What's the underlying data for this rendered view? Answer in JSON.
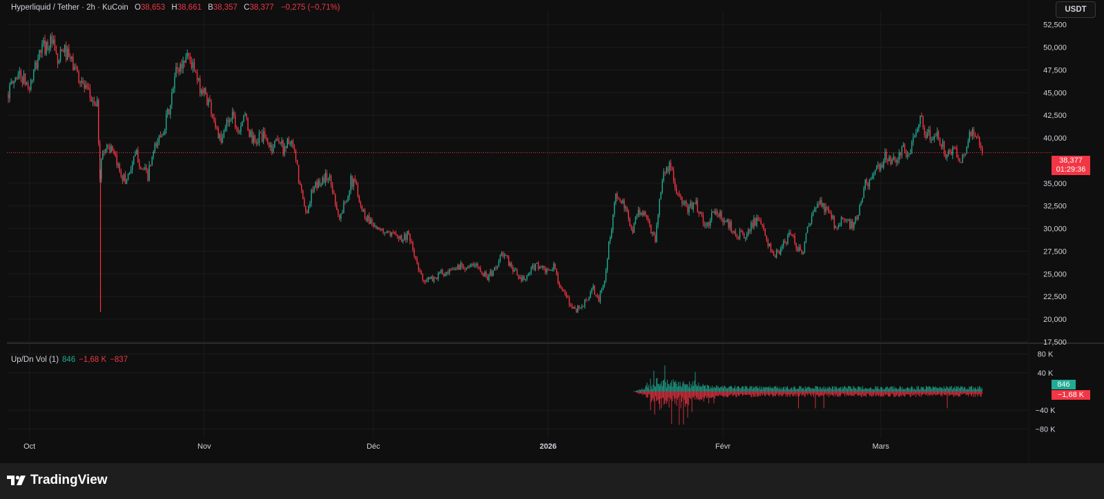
{
  "header": {
    "symbol": "Hyperliquid / Tether · 2h · KuCoin",
    "open_label": "O",
    "open": "38,653",
    "high_label": "H",
    "high": "38,661",
    "low_label": "B",
    "low": "38,357",
    "close_label": "C",
    "close": "38,377",
    "change": "−0,275 (−0,71%)"
  },
  "currency_button": "USDT",
  "last_price": {
    "price": "38,377",
    "countdown": "01:29:36"
  },
  "volume_legend": {
    "title": "Up/Dn Vol (1)",
    "up": "846",
    "down": "−1,68 K",
    "delta": "−837"
  },
  "volume_tags": {
    "up": "846",
    "down": "−1,68 K"
  },
  "brand": "TradingView",
  "colors": {
    "up": "#22ab94",
    "down": "#f23645",
    "background": "#0f0f0f",
    "grid": "#1c1c1c",
    "axis_text": "#d1d4dc"
  },
  "chart_data": [
    {
      "type": "candlestick",
      "timeframe": "2h",
      "y_ticks": [
        "52,500",
        "50,000",
        "47,500",
        "45,000",
        "42,500",
        "40,000",
        "35,000",
        "32,500",
        "30,000",
        "27,500",
        "25,000",
        "22,500",
        "20,000",
        "17,500"
      ],
      "y_tick_values": [
        52.5,
        50,
        47.5,
        45,
        42.5,
        40,
        35,
        32.5,
        30,
        27.5,
        25,
        22.5,
        20,
        17.5
      ],
      "ylim": [
        17.5,
        54
      ],
      "x_ticks": [
        "Oct",
        "Nov",
        "Déc",
        "2026",
        "Févr",
        "Mars"
      ],
      "x_tick_days": [
        0,
        31,
        61,
        92,
        123,
        151
      ],
      "x_range_days": [
        -4,
        177
      ],
      "close_path": [
        [
          -4,
          44.8
        ],
        [
          -2,
          47.2
        ],
        [
          0,
          45.5
        ],
        [
          2,
          49.8
        ],
        [
          4,
          50.6
        ],
        [
          5,
          48.2
        ],
        [
          6,
          49.8
        ],
        [
          8,
          47.8
        ],
        [
          10,
          45.2
        ],
        [
          11,
          44.3
        ],
        [
          12,
          43.5
        ],
        [
          12.5,
          36.0
        ],
        [
          13,
          38.5
        ],
        [
          14,
          39.3
        ],
        [
          15,
          37.8
        ],
        [
          16,
          36.5
        ],
        [
          17,
          35.2
        ],
        [
          18,
          36.8
        ],
        [
          19,
          38.2
        ],
        [
          20,
          36.6
        ],
        [
          21,
          35.8
        ],
        [
          22,
          38.3
        ],
        [
          23,
          40.0
        ],
        [
          24,
          41.5
        ],
        [
          25,
          43.5
        ],
        [
          26,
          47.4
        ],
        [
          27,
          48.0
        ],
        [
          28,
          49.4
        ],
        [
          29,
          47.8
        ],
        [
          30,
          45.8
        ],
        [
          31,
          45.0
        ],
        [
          32,
          43.7
        ],
        [
          33,
          41.5
        ],
        [
          34,
          39.2
        ],
        [
          35,
          41.8
        ],
        [
          36,
          42.8
        ],
        [
          37,
          40.8
        ],
        [
          38,
          42.6
        ],
        [
          39,
          40.6
        ],
        [
          40,
          39.3
        ],
        [
          41,
          40.4
        ],
        [
          42,
          39.7
        ],
        [
          43,
          38.8
        ],
        [
          44,
          40.2
        ],
        [
          45,
          38.8
        ],
        [
          46,
          39.7
        ],
        [
          47,
          38.3
        ],
        [
          48,
          34.6
        ],
        [
          49,
          31.6
        ],
        [
          50,
          33.8
        ],
        [
          51,
          34.8
        ],
        [
          52,
          35.4
        ],
        [
          53,
          35.9
        ],
        [
          54,
          33.8
        ],
        [
          55,
          31.0
        ],
        [
          56,
          33.0
        ],
        [
          57,
          35.2
        ],
        [
          58,
          34.8
        ],
        [
          59,
          32.0
        ],
        [
          60,
          31.1
        ],
        [
          61,
          30.7
        ],
        [
          62,
          29.5
        ],
        [
          63,
          29.8
        ],
        [
          64,
          28.9
        ],
        [
          65,
          29.8
        ],
        [
          66,
          28.8
        ],
        [
          67,
          29.4
        ],
        [
          68,
          27.6
        ],
        [
          69,
          25.4
        ],
        [
          70,
          24.4
        ],
        [
          71,
          24.3
        ],
        [
          72,
          24.6
        ],
        [
          73,
          25.1
        ],
        [
          74,
          24.8
        ],
        [
          75,
          25.3
        ],
        [
          76,
          25.8
        ],
        [
          77,
          26.0
        ],
        [
          78,
          25.7
        ],
        [
          79,
          25.9
        ],
        [
          80,
          25.7
        ],
        [
          81,
          24.6
        ],
        [
          82,
          25.0
        ],
        [
          83,
          26.1
        ],
        [
          84,
          27.3
        ],
        [
          85,
          26.2
        ],
        [
          86,
          25.4
        ],
        [
          87,
          24.3
        ],
        [
          88,
          24.4
        ],
        [
          89,
          25.4
        ],
        [
          90,
          26.1
        ],
        [
          91,
          25.5
        ],
        [
          92,
          25.1
        ],
        [
          93,
          25.8
        ],
        [
          94,
          24.0
        ],
        [
          95,
          22.5
        ],
        [
          96,
          21.5
        ],
        [
          97,
          21.1
        ],
        [
          98,
          21.4
        ],
        [
          99,
          22.3
        ],
        [
          100,
          23.3
        ],
        [
          101,
          22.0
        ],
        [
          102,
          24.5
        ],
        [
          103,
          29.3
        ],
        [
          104,
          33.5
        ],
        [
          105,
          33.0
        ],
        [
          106,
          31.5
        ],
        [
          107,
          30.0
        ],
        [
          108,
          32.0
        ],
        [
          109,
          31.5
        ],
        [
          110,
          30.3
        ],
        [
          111,
          28.9
        ],
        [
          112,
          34.5
        ],
        [
          113,
          37.2
        ],
        [
          114,
          36.1
        ],
        [
          115,
          33.5
        ],
        [
          116,
          32.6
        ],
        [
          117,
          32.0
        ],
        [
          118,
          33.2
        ],
        [
          119,
          31.4
        ],
        [
          120,
          30.0
        ],
        [
          121,
          31.5
        ],
        [
          122,
          31.8
        ],
        [
          123,
          31.0
        ],
        [
          124,
          30.5
        ],
        [
          125,
          29.7
        ],
        [
          126,
          29.3
        ],
        [
          127,
          29.0
        ],
        [
          128,
          30.6
        ],
        [
          129,
          30.8
        ],
        [
          130,
          30.0
        ],
        [
          131,
          28.4
        ],
        [
          132,
          26.9
        ],
        [
          133,
          27.4
        ],
        [
          134,
          28.4
        ],
        [
          135,
          29.6
        ],
        [
          136,
          28.2
        ],
        [
          137,
          27.2
        ],
        [
          138,
          29.8
        ],
        [
          139,
          31.5
        ],
        [
          140,
          33.0
        ],
        [
          141,
          32.2
        ],
        [
          142,
          31.7
        ],
        [
          143,
          30.2
        ],
        [
          144,
          31.1
        ],
        [
          145,
          30.6
        ],
        [
          146,
          30.3
        ],
        [
          147,
          31.3
        ],
        [
          148,
          34.7
        ],
        [
          149,
          35.4
        ],
        [
          150,
          35.9
        ],
        [
          151,
          37.1
        ],
        [
          152,
          38.2
        ],
        [
          153,
          37.2
        ],
        [
          154,
          38.0
        ],
        [
          155,
          38.7
        ],
        [
          156,
          37.9
        ],
        [
          157,
          40.6
        ],
        [
          158,
          42.7
        ],
        [
          159,
          40.4
        ],
        [
          160,
          40.0
        ],
        [
          161,
          40.6
        ],
        [
          162,
          39.0
        ],
        [
          163,
          38.0
        ],
        [
          164,
          38.5
        ],
        [
          165,
          37.6
        ],
        [
          166,
          38.7
        ],
        [
          167,
          40.7
        ],
        [
          168,
          39.7
        ],
        [
          169,
          38.4
        ]
      ],
      "last_close": 38.377,
      "range_low": 20.6,
      "range_high": 51.3,
      "spike_low": {
        "day": 12.6,
        "value": 20.8
      }
    },
    {
      "type": "bar",
      "name": "Up/Dn Vol (1)",
      "y_ticks": [
        "80 K",
        "40 K",
        "−40 K",
        "−80 K"
      ],
      "y_tick_values": [
        80,
        40,
        -40,
        -80
      ],
      "ylim": [
        -100,
        100
      ],
      "start_day": 107,
      "end_day": 169,
      "typical_up": 10,
      "typical_down": -10,
      "peak_up": 62,
      "peak_down": -72,
      "last_up": 0.846,
      "last_down": -1.68,
      "last_delta": -0.837
    }
  ]
}
